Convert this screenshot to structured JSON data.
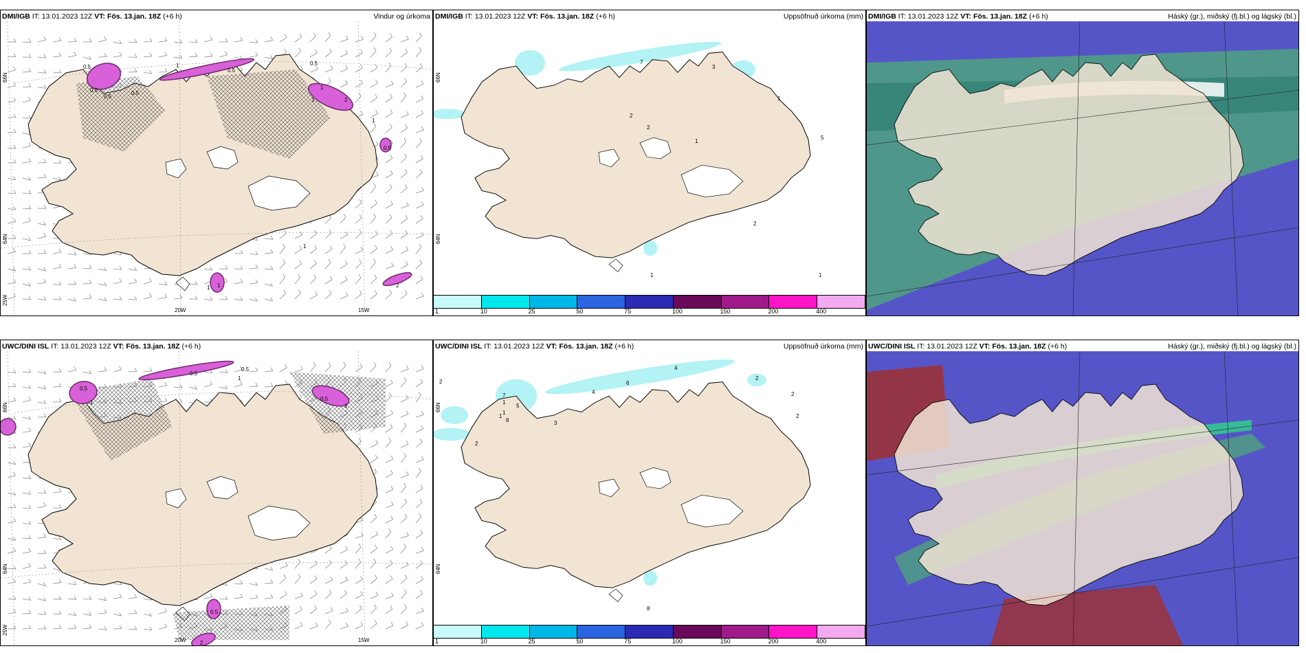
{
  "colors": {
    "land": "#f1e4d3",
    "cyan_light": "#b3f2f5",
    "precip_magenta": "#d860d8",
    "precip_dark": "#6b2a6b",
    "cloud_high": "#4f9e84",
    "cloud_mid": "#5555c8",
    "cloud_low": "#a03030",
    "cloud_green": "#2fd38a"
  },
  "panels": [
    {
      "model": "DMI/IGB",
      "it_label": "IT:",
      "it_value": "13.01.2023 12Z",
      "vt_label": "VT:",
      "vt_value": "Fös. 13.jan. 18Z",
      "lead": "(+6 h)",
      "title": "Vindur og úrkoma",
      "lat_labels": [
        "66N",
        "64N",
        "25W"
      ],
      "lon_labels": [
        "20W",
        "15W"
      ],
      "numbers": [
        "0.5",
        "0.5",
        "0.5",
        "1",
        "0.5",
        "0.5",
        "1",
        "2",
        "1",
        "0.5",
        "1",
        "1",
        "1",
        "2",
        "0.5",
        "1"
      ]
    },
    {
      "model": "DMI/IGB",
      "it_label": "IT:",
      "it_value": "13.01.2023 12Z",
      "vt_label": "VT:",
      "vt_value": "Fös. 13.jan. 18Z",
      "lead": "(+6 h)",
      "title": "Uppsöfnuð úrkoma (mm)",
      "lat_labels": [
        "66N",
        "64N"
      ],
      "numbers": [
        "7",
        "3",
        "1",
        "2",
        "2",
        "1",
        "5",
        "2",
        "1",
        "1"
      ],
      "colorbar": {
        "ticks": [
          "1",
          "10",
          "25",
          "50",
          "75",
          "100",
          "150",
          "200",
          "400"
        ],
        "colors": [
          "#c8fafa",
          "#00e8ec",
          "#00b8e8",
          "#2a64e0",
          "#2a2ab4",
          "#6a0a5a",
          "#a01a8a",
          "#ff14c8",
          "#f4aaf0"
        ]
      }
    },
    {
      "model": "DMI/IGB",
      "it_label": "IT:",
      "it_value": "13.01.2023 12Z",
      "vt_label": "VT:",
      "vt_value": "Fös. 13.jan. 18Z",
      "lead": "(+6 h)",
      "title": "Háský (gr.), miðský (fj.bl.) og lágský (bl.)"
    },
    {
      "model": "UWC/DINI ISL",
      "it_label": "IT:",
      "it_value": "13.01.2023 12Z",
      "vt_label": "VT:",
      "vt_value": "Fös. 13.jan. 18Z",
      "lead": "(+6 h)",
      "title": "",
      "lat_labels": [
        "66N",
        "64N",
        "25W"
      ],
      "lon_labels": [
        "20W",
        "15W"
      ],
      "numbers": [
        "0.5",
        "1",
        "0.5",
        "0.5",
        "1",
        "0.5",
        "1",
        "0.5",
        "2"
      ]
    },
    {
      "model": "UWC/DINI ISL",
      "it_label": "IT:",
      "it_value": "13.01.2023 12Z",
      "vt_label": "VT:",
      "vt_value": "Fös. 13.jan. 18Z",
      "lead": "(+6 h)",
      "title": "Uppsöfnuð úrkoma (mm)",
      "lat_labels": [
        "66N",
        "64N"
      ],
      "numbers": [
        "2",
        "6",
        "4",
        "4",
        "2",
        "2",
        "2",
        "1",
        "1",
        "1",
        "2",
        "7",
        "5",
        "8",
        "3",
        "8"
      ],
      "colorbar": {
        "ticks": [
          "1",
          "10",
          "25",
          "50",
          "75",
          "100",
          "150",
          "200",
          "400"
        ],
        "colors": [
          "#c8fafa",
          "#00e8ec",
          "#00b8e8",
          "#2a64e0",
          "#2a2ab4",
          "#6a0a5a",
          "#a01a8a",
          "#ff14c8",
          "#f4aaf0"
        ]
      }
    },
    {
      "model": "UWC/DINI ISL",
      "it_label": "IT:",
      "it_value": "13.01.2023 12Z",
      "vt_label": "VT:",
      "vt_value": "Fös. 13.jan. 18Z",
      "lead": "(+6 h)",
      "title": "Háský (gr.), miðský (fj.bl.) og lágský (bl.)"
    }
  ]
}
